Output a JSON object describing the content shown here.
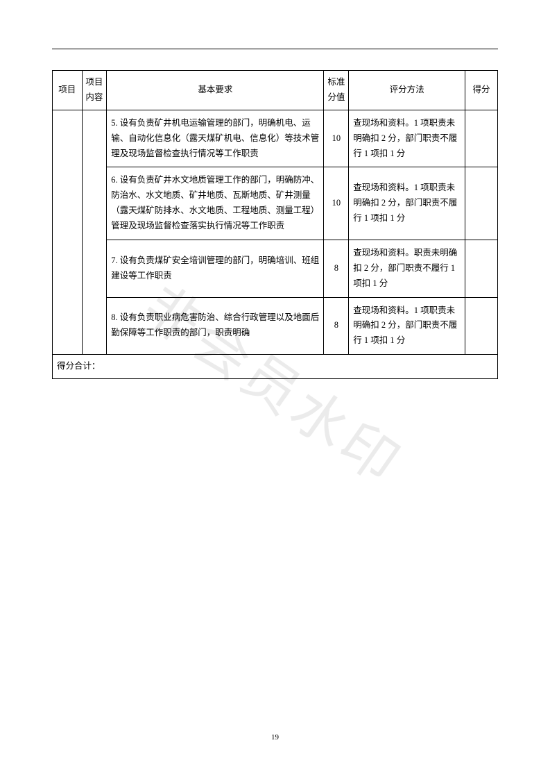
{
  "page_number": "19",
  "watermark_text": "非会员水印",
  "headers": {
    "project": "项目",
    "item": "项目内容",
    "requirement": "基本要求",
    "std_value": "标准分值",
    "method": "评分方法",
    "score": "得分"
  },
  "rows": [
    {
      "requirement": "5. 设有负责矿井机电运输管理的部门，明确机电、运输、自动化信息化（露天煤矿机电、信息化）等技术管理及现场监督检查执行情况等工作职责",
      "std_value": "10",
      "method": "查现场和资料。1 项职责未明确扣 2 分，部门职责不履行 1 项扣 1 分"
    },
    {
      "requirement": "6. 设有负责矿井水文地质管理工作的部门，明确防冲、防治水、水文地质、矿井地质、瓦斯地质、矿井测量（露天煤矿防排水、水文地质、工程地质、测量工程）管理及现场监督检查落实执行情况等工作职责",
      "std_value": "10",
      "method": "查现场和资料。1 项职责未明确扣 2 分，部门职责不履行 1 项扣 1 分"
    },
    {
      "requirement": "7. 设有负责煤矿安全培训管理的部门，明确培训、班组建设等工作职责",
      "std_value": "8",
      "method": "查现场和资料。职责未明确扣 2 分，部门职责不履行 1 项扣 1 分"
    },
    {
      "requirement": "8. 设有负责职业病危害防治、综合行政管理以及地面后勤保障等工作职责的部门，职责明确",
      "std_value": "8",
      "method": "查现场和资料。1 项职责未明确扣 2 分，部门职责不履行 1 项扣 1 分"
    }
  ],
  "total_label": "得分合计："
}
